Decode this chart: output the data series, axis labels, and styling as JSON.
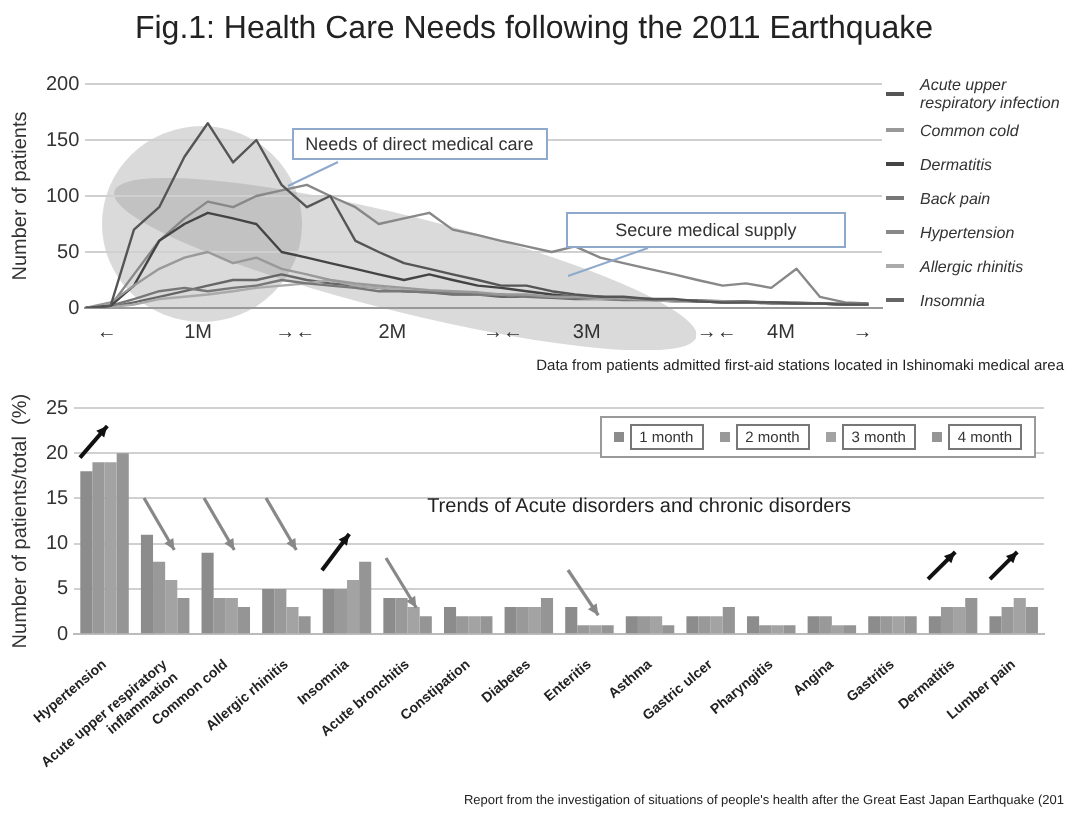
{
  "chart_data": [
    {
      "type": "line",
      "title": "Fig.1: Health Care Needs following the 2011 Earthquake",
      "ylabel": "Number of patients",
      "annotations": [
        "Needs of direct medical care",
        "Secure  medical supply",
        "Data from patients admitted  first-aid stations located in Ishinomaki  medical area"
      ],
      "x": [
        0.42,
        0.55,
        0.67,
        0.8,
        0.93,
        1.05,
        1.18,
        1.3,
        1.43,
        1.56,
        1.68,
        1.81,
        1.93,
        2.06,
        2.19,
        2.31,
        2.44,
        2.56,
        2.69,
        2.82,
        2.94,
        3.07,
        3.19,
        3.32,
        3.45,
        3.57,
        3.7,
        3.82,
        3.95,
        4.08,
        4.2,
        4.33,
        4.45
      ],
      "xlim": [
        0.42,
        4.52
      ],
      "xticks": [
        {
          "value": 0.53,
          "label": "←"
        },
        {
          "value": 1,
          "label": "1M"
        },
        {
          "value": 1.5,
          "label": "→←"
        },
        {
          "value": 2,
          "label": "2M"
        },
        {
          "value": 2.57,
          "label": "→←"
        },
        {
          "value": 3,
          "label": "3M"
        },
        {
          "value": 3.67,
          "label": "→←"
        },
        {
          "value": 4,
          "label": "4M"
        },
        {
          "value": 4.42,
          "label": "→"
        }
      ],
      "ylim": [
        0,
        200
      ],
      "yticks": [
        0,
        50,
        100,
        150,
        200
      ],
      "grid": "y",
      "legend": "right",
      "marker": "none",
      "series": [
        {
          "name": "Acute upper respiratory infection",
          "color": "#555555",
          "values": [
            0,
            2,
            70,
            90,
            135,
            165,
            130,
            150,
            110,
            90,
            100,
            60,
            50,
            40,
            35,
            30,
            25,
            20,
            20,
            15,
            12,
            10,
            10,
            8,
            8,
            6,
            5,
            5,
            5,
            4,
            4,
            3,
            3
          ]
        },
        {
          "name": "Common cold",
          "color": "#999999",
          "values": [
            0,
            5,
            20,
            35,
            45,
            50,
            40,
            45,
            35,
            30,
            25,
            22,
            20,
            18,
            16,
            15,
            14,
            12,
            12,
            10,
            10,
            9,
            8,
            8,
            7,
            6,
            6,
            5,
            5,
            4,
            4,
            3,
            3
          ]
        },
        {
          "name": "Dermatitis",
          "color": "#444444",
          "values": [
            0,
            2,
            20,
            60,
            75,
            85,
            80,
            75,
            50,
            45,
            40,
            35,
            30,
            25,
            30,
            25,
            20,
            18,
            15,
            12,
            10,
            10,
            8,
            8,
            7,
            6,
            5,
            5,
            5,
            4,
            4,
            3,
            3
          ]
        },
        {
          "name": "Back pain",
          "color": "#777777",
          "values": [
            0,
            2,
            8,
            15,
            18,
            15,
            18,
            20,
            25,
            22,
            20,
            18,
            15,
            15,
            14,
            13,
            12,
            12,
            10,
            10,
            9,
            9,
            8,
            8,
            7,
            7,
            6,
            6,
            5,
            5,
            4,
            4,
            4
          ]
        },
        {
          "name": "Hypertension",
          "color": "#888888",
          "values": [
            0,
            2,
            30,
            60,
            80,
            95,
            90,
            100,
            105,
            110,
            100,
            90,
            75,
            80,
            85,
            70,
            65,
            60,
            55,
            50,
            55,
            45,
            40,
            35,
            30,
            25,
            20,
            22,
            18,
            35,
            10,
            5,
            4
          ]
        },
        {
          "name": "Allergic rhinitis",
          "color": "#aaaaaa",
          "values": [
            0,
            1,
            3,
            8,
            10,
            12,
            15,
            18,
            20,
            22,
            25,
            20,
            18,
            16,
            15,
            14,
            12,
            12,
            10,
            10,
            9,
            8,
            8,
            7,
            6,
            6,
            5,
            5,
            5,
            4,
            4,
            3,
            3
          ]
        },
        {
          "name": "Insomnia",
          "color": "#666666",
          "values": [
            0,
            1,
            5,
            10,
            15,
            20,
            25,
            25,
            30,
            25,
            22,
            20,
            18,
            15,
            14,
            12,
            12,
            10,
            10,
            9,
            8,
            8,
            7,
            7,
            6,
            6,
            5,
            5,
            4,
            4,
            4,
            3,
            3
          ]
        }
      ]
    },
    {
      "type": "bar",
      "ylabel": "Number of patients/total  (%)",
      "annotations": [
        "Trends of Acute disorders and chronic disorders",
        "Report from the investigation of situations of people's health after the Great East Japan Earthquake  (201"
      ],
      "categories": [
        "Hypertension",
        "Acute upper respiratory inflammation",
        "Common cold",
        "Allergic rhinitis",
        "Insomnia",
        "Acute bronchitis",
        "Constipation",
        "Diabetes",
        "Enteritis",
        "Asthma",
        "Gastric ulcer",
        "Pharyngitis",
        "Angina",
        "Gastritis",
        "Dermatitis",
        "Lumber pain"
      ],
      "ylim": [
        0,
        25
      ],
      "yticks": [
        0,
        5,
        10,
        15,
        20,
        25
      ],
      "grid": "y",
      "legend": "top right",
      "series": [
        {
          "name": "1 month",
          "color": "#8c8c8c",
          "values": [
            18,
            11,
            9,
            5,
            5,
            4,
            3,
            3,
            3,
            2,
            2,
            2,
            2,
            2,
            2,
            2
          ]
        },
        {
          "name": "2 month",
          "color": "#999999",
          "values": [
            19,
            8,
            4,
            5,
            5,
            4,
            2,
            3,
            1,
            2,
            2,
            1,
            2,
            2,
            3,
            3
          ]
        },
        {
          "name": "3 month",
          "color": "#a3a3a3",
          "values": [
            19,
            6,
            4,
            3,
            6,
            3,
            2,
            3,
            1,
            2,
            2,
            1,
            1,
            2,
            3,
            4
          ]
        },
        {
          "name": "4 month",
          "color": "#959595",
          "values": [
            20,
            4,
            3,
            2,
            8,
            2,
            2,
            4,
            1,
            1,
            3,
            1,
            1,
            2,
            4,
            3
          ]
        }
      ]
    }
  ]
}
